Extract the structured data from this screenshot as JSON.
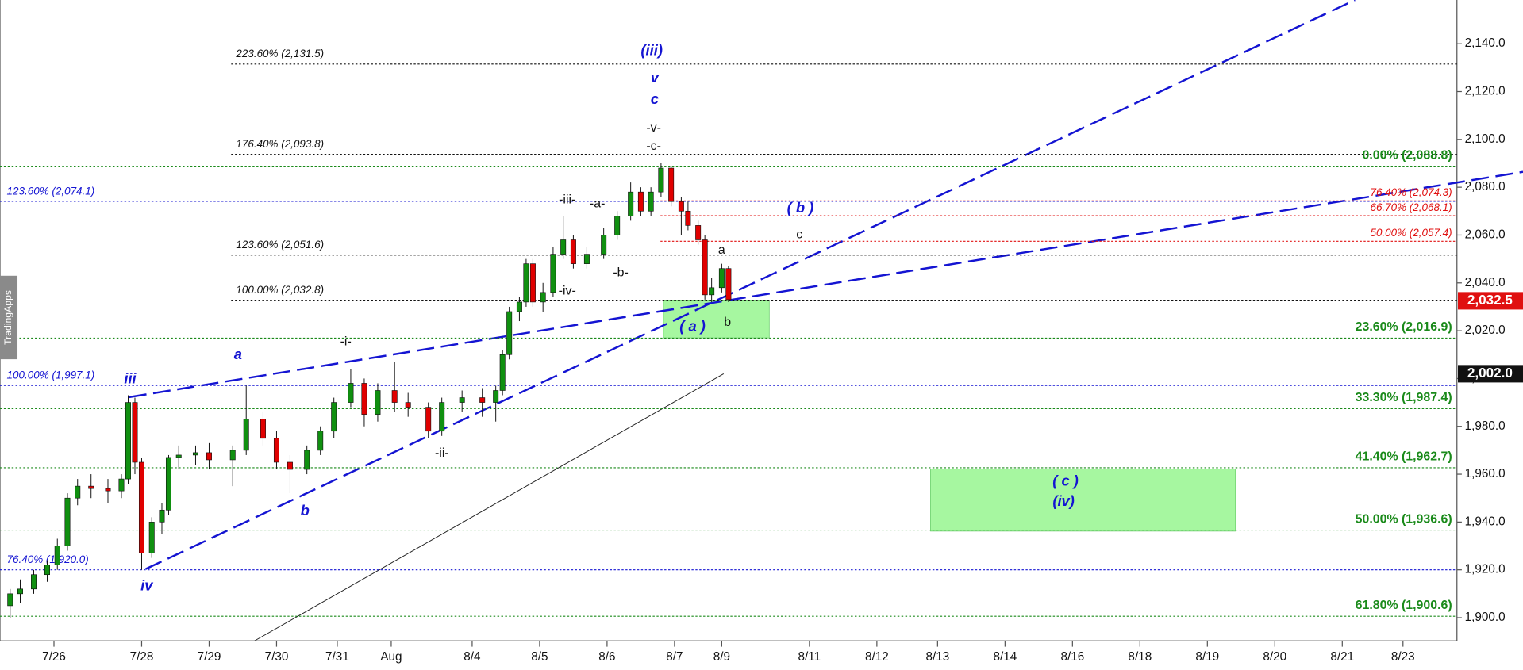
{
  "chart_data": {
    "type": "candlestick",
    "watermark": "TradingApps",
    "up_color": "#109010",
    "down_color": "#e00000",
    "xlim": [
      0,
      216
    ],
    "xticks": [
      {
        "value": 8,
        "label": "7/26"
      },
      {
        "value": 21,
        "label": "7/28"
      },
      {
        "value": 31,
        "label": "7/29"
      },
      {
        "value": 41,
        "label": "7/30"
      },
      {
        "value": 50,
        "label": "7/31"
      },
      {
        "value": 58,
        "label": "Aug"
      },
      {
        "value": 70,
        "label": "8/4"
      },
      {
        "value": 80,
        "label": "8/5"
      },
      {
        "value": 90,
        "label": "8/6"
      },
      {
        "value": 100,
        "label": "8/7"
      },
      {
        "value": 107,
        "label": "8/9"
      },
      {
        "value": 120,
        "label": "8/11"
      },
      {
        "value": 130,
        "label": "8/12"
      },
      {
        "value": 139,
        "label": "8/13"
      },
      {
        "value": 149,
        "label": "8/14"
      },
      {
        "value": 159,
        "label": "8/16"
      },
      {
        "value": 169,
        "label": "8/18"
      },
      {
        "value": 179,
        "label": "8/19"
      },
      {
        "value": 189,
        "label": "8/20"
      },
      {
        "value": 199,
        "label": "8/21"
      },
      {
        "value": 208,
        "label": "8/23"
      }
    ],
    "ylim": [
      1890.3,
      2158.3
    ],
    "yticks": [
      {
        "value": 1900,
        "label": "1,900.0"
      },
      {
        "value": 1920,
        "label": "1,920.0"
      },
      {
        "value": 1940,
        "label": "1,940.0"
      },
      {
        "value": 1960,
        "label": "1,960.0"
      },
      {
        "value": 1980,
        "label": "1,980.0"
      },
      {
        "value": 2000,
        "label": "2,000.0"
      },
      {
        "value": 2020,
        "label": "2,020.0"
      },
      {
        "value": 2040,
        "label": "2,040.0"
      },
      {
        "value": 2060,
        "label": "2,060.0"
      },
      {
        "value": 2080,
        "label": "2,080.0"
      },
      {
        "value": 2100,
        "label": "2,100.0"
      },
      {
        "value": 2120,
        "label": "2,120.0"
      },
      {
        "value": 2140,
        "label": "2,140.0"
      }
    ],
    "x": [
      1.5,
      3,
      5,
      7,
      8.5,
      10,
      11.5,
      13.5,
      16,
      18,
      19,
      20,
      21,
      22.5,
      24,
      25,
      26.5,
      29,
      31,
      34.5,
      36.5,
      39,
      41,
      43,
      45.5,
      47.5,
      49.5,
      52,
      54,
      56,
      58.5,
      60.5,
      63.5,
      65.5,
      68.5,
      71.5,
      73.5,
      74.5,
      75.5,
      77,
      78,
      79,
      80.5,
      82,
      83.5,
      85,
      87,
      89.5,
      91.5,
      93.5,
      95,
      96.5,
      98,
      99.5,
      101,
      102,
      103.5,
      104.5,
      105.5,
      107,
      108
    ],
    "open": [
      1905,
      1910,
      1912,
      1918,
      1922,
      1930,
      1950,
      1955,
      1954,
      1953,
      1958,
      1990,
      1965,
      1927,
      1940,
      1945,
      1967,
      1968,
      1969,
      1966,
      1970,
      1983,
      1975,
      1965,
      1962,
      1970,
      1978,
      1990,
      1998,
      1985,
      1995,
      1990,
      1988,
      1978,
      1990,
      1992,
      1990,
      1995,
      2010,
      2028,
      2032,
      2048,
      2032,
      2036,
      2052,
      2058,
      2048,
      2052,
      2060,
      2068,
      2078,
      2070,
      2078,
      2088,
      2074,
      2070,
      2064,
      2058,
      2035,
      2038,
      2046
    ],
    "high": [
      1912,
      1916,
      1920,
      1924,
      1933,
      1952,
      1958,
      1960,
      1958,
      1960,
      1993,
      1992,
      1967,
      1942,
      1948,
      1968,
      1972,
      1972,
      1973,
      1972,
      1997,
      1986,
      1978,
      1968,
      1972,
      1980,
      1992,
      2004,
      2000,
      1998,
      2007,
      1994,
      1990,
      1992,
      1995,
      1996,
      1997,
      2012,
      2030,
      2034,
      2050,
      2050,
      2040,
      2055,
      2068,
      2060,
      2055,
      2063,
      2070,
      2082,
      2080,
      2080,
      2090,
      2089,
      2076,
      2074,
      2066,
      2060,
      2042,
      2048,
      2047
    ],
    "low": [
      1900,
      1906,
      1910,
      1915,
      1920,
      1928,
      1947,
      1950,
      1948,
      1950,
      1956,
      1960,
      1920,
      1925,
      1935,
      1943,
      1962,
      1964,
      1962,
      1955,
      1968,
      1972,
      1962,
      1952,
      1960,
      1968,
      1975,
      1988,
      1980,
      1982,
      1986,
      1984,
      1975,
      1976,
      1986,
      1984,
      1982,
      1993,
      2008,
      2024,
      2030,
      2030,
      2028,
      2034,
      2050,
      2046,
      2046,
      2050,
      2058,
      2066,
      2068,
      2068,
      2076,
      2072,
      2060,
      2062,
      2056,
      2033,
      2032,
      2036,
      2032
    ],
    "close": [
      1910,
      1912,
      1918,
      1922,
      1930,
      1950,
      1955,
      1954,
      1953,
      1958,
      1990,
      1965,
      1927,
      1940,
      1945,
      1967,
      1968,
      1969,
      1966,
      1970,
      1983,
      1975,
      1965,
      1962,
      1970,
      1978,
      1990,
      1998,
      1985,
      1995,
      1990,
      1988,
      1978,
      1990,
      1992,
      1990,
      1995,
      2010,
      2028,
      2032,
      2048,
      2032,
      2036,
      2052,
      2058,
      2048,
      2052,
      2060,
      2068,
      2078,
      2070,
      2078,
      2088,
      2074,
      2070,
      2064,
      2058,
      2035,
      2038,
      2046,
      2033
    ],
    "fib_groups": [
      {
        "color": "#1414d2",
        "levels": [
          {
            "value": 2074.1,
            "label": "123.60% (2,074.1)"
          },
          {
            "value": 1997.1,
            "label": "100.00% (1,997.1)"
          },
          {
            "value": 1920.0,
            "label": "76.40% (1,920.0)"
          }
        ]
      },
      {
        "color": "#111111",
        "levels": [
          {
            "value": 2131.5,
            "label": "223.60% (2,131.5)"
          },
          {
            "value": 2093.8,
            "label": "176.40% (2,093.8)"
          },
          {
            "value": 2051.6,
            "label": "123.60% (2,051.6)"
          },
          {
            "value": 2032.8,
            "label": "100.00% (2,032.8)"
          }
        ]
      },
      {
        "color": "#1a8a1a",
        "levels": [
          {
            "value": 2088.8,
            "label": "0.00% (2,088.8)"
          },
          {
            "value": 2016.9,
            "label": "23.60% (2,016.9)"
          },
          {
            "value": 1987.4,
            "label": "33.30% (1,987.4)"
          },
          {
            "value": 1962.7,
            "label": "41.40% (1,962.7)"
          },
          {
            "value": 1936.6,
            "label": "50.00% (1,936.6)"
          },
          {
            "value": 1900.6,
            "label": "61.80% (1,900.6)"
          }
        ]
      },
      {
        "color": "#e01010",
        "levels": [
          {
            "value": 2074.3,
            "label": "76.40% (2,074.3)"
          },
          {
            "value": 2068.1,
            "label": "66.70% (2,068.1)"
          },
          {
            "value": 2057.4,
            "label": "50.00% (2,057.4)"
          }
        ]
      }
    ],
    "price_labels": [
      {
        "value": 2032.5,
        "label": "2,032.5",
        "color": "#e01010"
      },
      {
        "value": 2002.0,
        "label": "2,002.0",
        "color": "#111111"
      }
    ],
    "annotations": [
      {
        "text": "(iii)",
        "color": "#1414d2"
      },
      {
        "text": "v",
        "color": "#1414d2"
      },
      {
        "text": "c",
        "color": "#1414d2"
      },
      {
        "text": "-v-",
        "color": "#111111"
      },
      {
        "text": "-c-",
        "color": "#111111"
      },
      {
        "text": "-iii-",
        "color": "#111111"
      },
      {
        "text": "-a-",
        "color": "#111111"
      },
      {
        "text": "-b-",
        "color": "#111111"
      },
      {
        "text": "-iv-",
        "color": "#111111"
      },
      {
        "text": "-i-",
        "color": "#111111"
      },
      {
        "text": "-ii-",
        "color": "#111111"
      },
      {
        "text": "iii",
        "color": "#1414d2"
      },
      {
        "text": "iv",
        "color": "#1414d2"
      },
      {
        "text": "a",
        "color": "#1414d2"
      },
      {
        "text": "b",
        "color": "#1414d2"
      },
      {
        "text": "( b )",
        "color": "#1414d2"
      },
      {
        "text": "c",
        "color": "#111111"
      },
      {
        "text": "a",
        "color": "#111111"
      },
      {
        "text": "b",
        "color": "#111111"
      },
      {
        "text": "( a )",
        "color": "#1414d2"
      },
      {
        "text": "( c )",
        "color": "#1414d2"
      },
      {
        "text": "(iv)",
        "color": "#1414d2"
      }
    ]
  }
}
